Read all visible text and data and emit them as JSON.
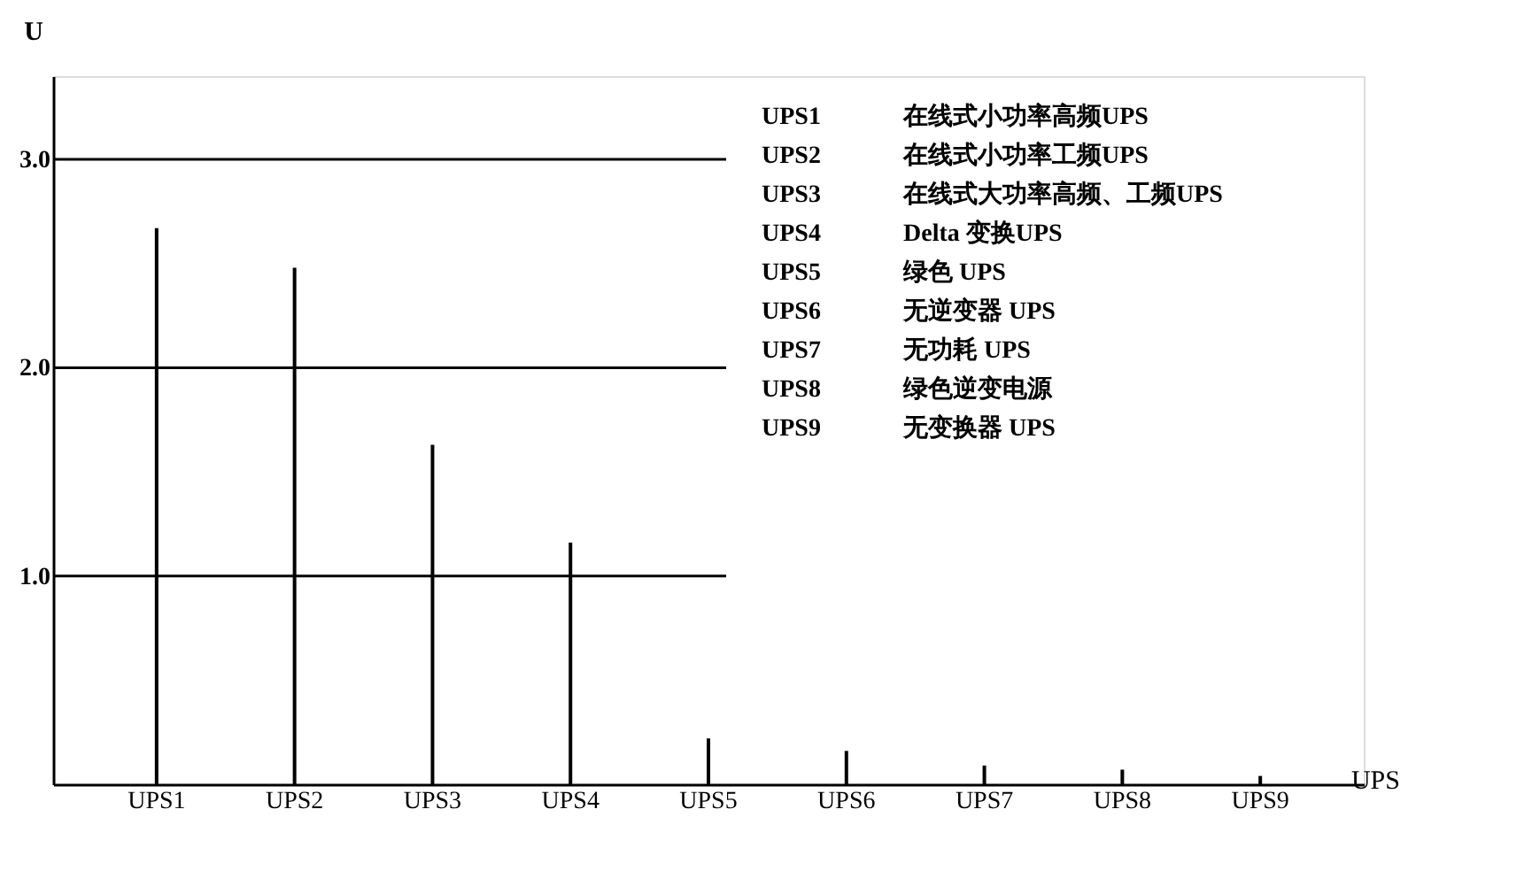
{
  "chart_data": {
    "type": "bar",
    "xlabel": "UPS",
    "ylabel": "U",
    "categories": [
      "UPS1",
      "UPS2",
      "UPS3",
      "UPS4",
      "UPS5",
      "UPS6",
      "UPS7",
      "UPS8",
      "UPS9"
    ],
    "values": [
      2.67,
      2.48,
      1.63,
      1.16,
      0.22,
      0.16,
      0.09,
      0.07,
      0.04
    ],
    "color": "#000000",
    "ylim": [
      0,
      3.4
    ],
    "yticks": [
      {
        "value": 1,
        "label": "1.0"
      },
      {
        "value": 2,
        "label": "2.0"
      },
      {
        "value": 3,
        "label": "3.0"
      }
    ],
    "grid": false,
    "ref_lines": [
      {
        "axis": "y",
        "value": 3,
        "color": "#000000"
      },
      {
        "axis": "y",
        "value": 2,
        "color": "#000000"
      },
      {
        "axis": "y",
        "value": 1,
        "color": "#000000"
      }
    ],
    "annotations": [
      "UPS1 在线式小功率高频UPS",
      "UPS2 在线式小功率工频UPS",
      "UPS3 在线式大功率高频、工频UPS",
      "UPS4 Delta 变换UPS",
      "UPS5 绿色 UPS",
      "UPS6 无逆变器 UPS",
      "UPS7 无功耗 UPS",
      "UPS8 绿色逆变电源",
      "UPS9 无变换器 UPS"
    ]
  }
}
